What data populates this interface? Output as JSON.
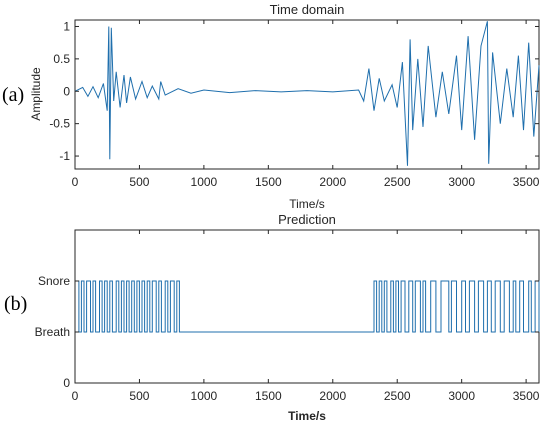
{
  "colors": {
    "series": "#1f6fad",
    "axis": "#262626"
  },
  "chart_data": [
    {
      "type": "line",
      "panel_label": "(a)",
      "title": "Time domain",
      "xlabel": "Time/s",
      "ylabel": "Amplitude",
      "xlim": [
        0,
        3600
      ],
      "ylim": [
        -1.2,
        1.1
      ],
      "xticks": [
        0,
        500,
        1000,
        1500,
        2000,
        2500,
        3000,
        3500
      ],
      "yticks": [
        -1,
        -0.5,
        0,
        0.5,
        1
      ],
      "ytick_labels": [
        "-1",
        "-0.5",
        "0",
        "0.5",
        "1"
      ],
      "series": [
        {
          "x": [
            0,
            60,
            100,
            140,
            180,
            220,
            250,
            262,
            270,
            282,
            300,
            320,
            350,
            380,
            400,
            430,
            470,
            520,
            560,
            600,
            650,
            665,
            700,
            800,
            900,
            1000,
            1200,
            1400,
            1600,
            1800,
            2000,
            2200,
            2240,
            2280,
            2320,
            2360,
            2400,
            2460,
            2500,
            2540,
            2580,
            2600,
            2620,
            2660,
            2700,
            2740,
            2800,
            2850,
            2900,
            2960,
            3000,
            3050,
            3100,
            3150,
            3200,
            3210,
            3240,
            3300,
            3350,
            3400,
            3440,
            3480,
            3520,
            3560,
            3600
          ],
          "values": [
            0,
            0.06,
            -0.08,
            0.07,
            -0.1,
            0.12,
            -0.3,
            1.0,
            -1.05,
            0.98,
            -0.15,
            0.3,
            -0.25,
            0.25,
            -0.18,
            0.22,
            -0.12,
            0.15,
            -0.1,
            0.08,
            -0.12,
            0.15,
            -0.06,
            0.04,
            -0.03,
            0.02,
            -0.02,
            0.01,
            -0.01,
            0.01,
            -0.01,
            0.02,
            -0.15,
            0.35,
            -0.3,
            0.2,
            -0.15,
            0.1,
            -0.25,
            0.45,
            -1.15,
            0.8,
            -0.6,
            0.5,
            -0.55,
            0.7,
            -0.4,
            0.3,
            -0.35,
            0.55,
            -0.6,
            0.85,
            -0.75,
            0.7,
            1.08,
            -1.12,
            0.6,
            -0.5,
            0.35,
            -0.4,
            0.55,
            -0.6,
            0.75,
            -0.7,
            0.4
          ]
        }
      ]
    },
    {
      "type": "line",
      "panel_label": "(b)",
      "title": "Prediction",
      "xlabel": "Time/s",
      "xlim": [
        0,
        3600
      ],
      "ylim": [
        0,
        3
      ],
      "xticks": [
        0,
        500,
        1000,
        1500,
        2000,
        2500,
        3000,
        3500
      ],
      "yticks": [
        0,
        1,
        2
      ],
      "ytick_labels": [
        "0",
        "Breath",
        "Snore"
      ],
      "series": [
        {
          "x": [
            0,
            30,
            50,
            70,
            90,
            120,
            140,
            160,
            190,
            210,
            230,
            250,
            270,
            290,
            320,
            340,
            360,
            380,
            400,
            420,
            440,
            460,
            480,
            500,
            520,
            540,
            560,
            580,
            600,
            630,
            650,
            670,
            700,
            720,
            740,
            770,
            790,
            810,
            2300,
            2320,
            2340,
            2360,
            2380,
            2400,
            2420,
            2450,
            2470,
            2490,
            2510,
            2530,
            2560,
            2590,
            2620,
            2640,
            2680,
            2700,
            2720,
            2760,
            2800,
            2840,
            2900,
            2920,
            2960,
            3000,
            3030,
            3060,
            3100,
            3130,
            3170,
            3200,
            3230,
            3260,
            3300,
            3330,
            3370,
            3400,
            3420,
            3450,
            3480,
            3520,
            3540,
            3570,
            3600
          ],
          "values": [
            2,
            1,
            2,
            1,
            2,
            1,
            2,
            1,
            2,
            1,
            2,
            1,
            2,
            1,
            2,
            1,
            2,
            1,
            2,
            1,
            2,
            1,
            2,
            1,
            2,
            1,
            2,
            1,
            2,
            1,
            2,
            1,
            2,
            1,
            2,
            1,
            2,
            1,
            1,
            2,
            1,
            2,
            1,
            2,
            1,
            2,
            1,
            2,
            1,
            2,
            1,
            2,
            1,
            2,
            1,
            2,
            1,
            2,
            1,
            2,
            1,
            2,
            1,
            2,
            1,
            2,
            1,
            2,
            1,
            2,
            1,
            2,
            1,
            2,
            1,
            2,
            1,
            2,
            1,
            2,
            1,
            2,
            1
          ]
        }
      ]
    }
  ]
}
